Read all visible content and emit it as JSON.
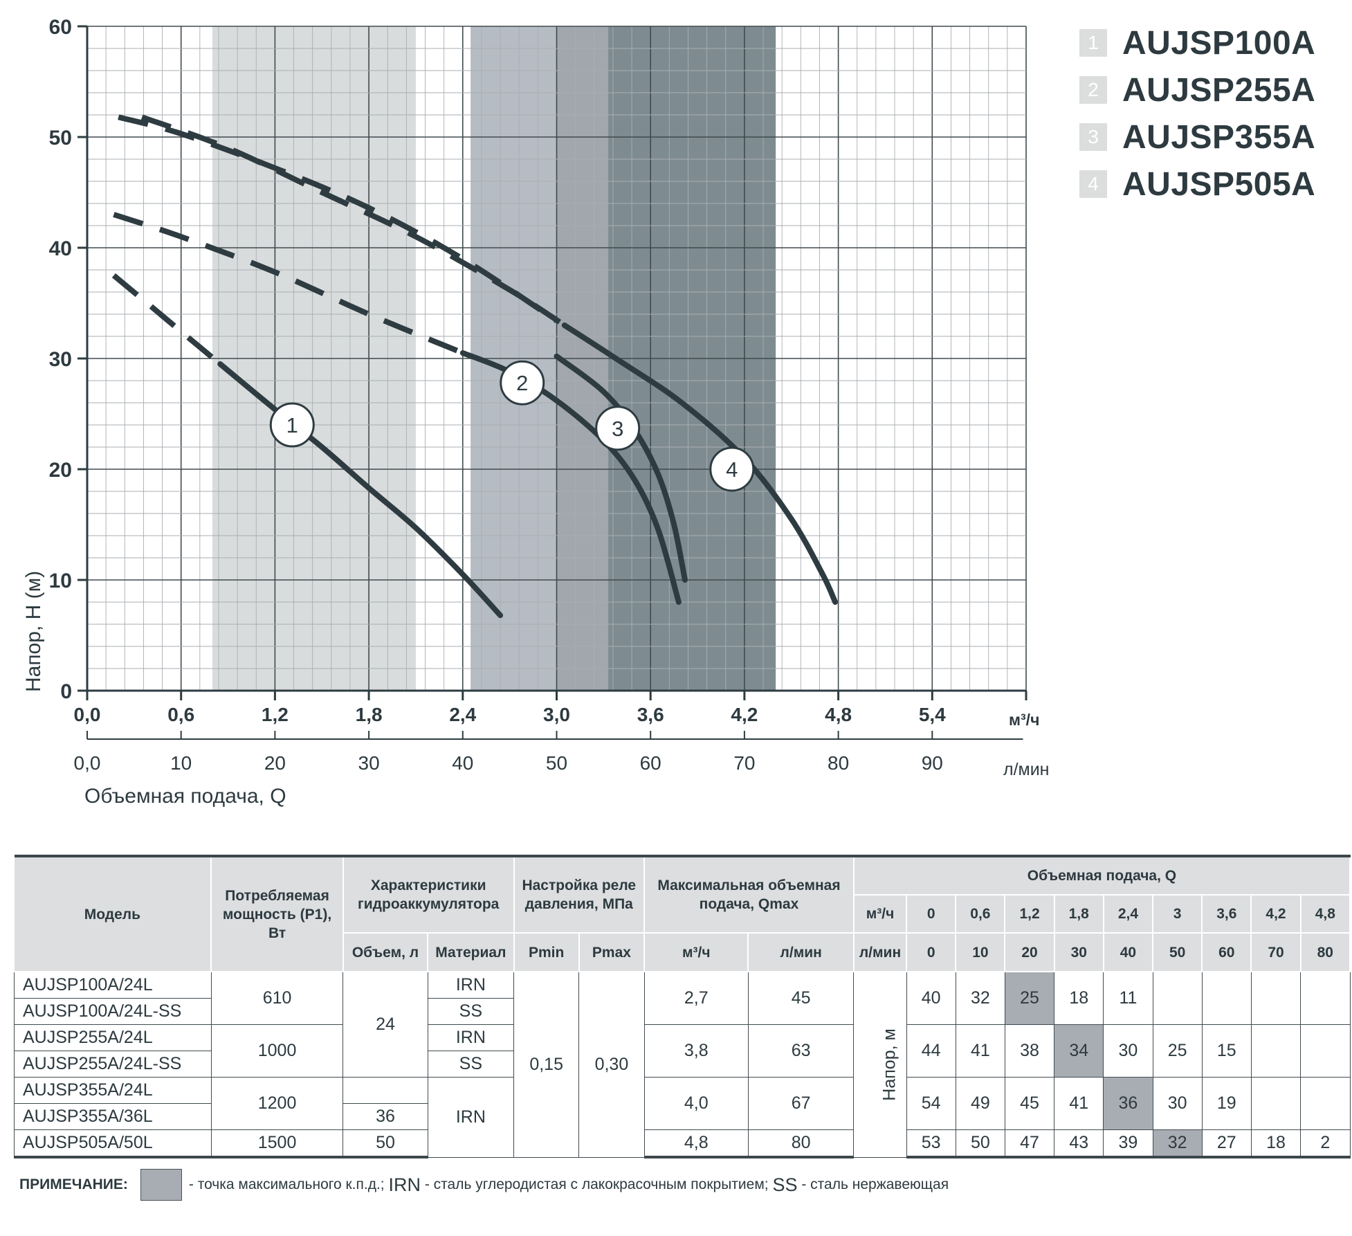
{
  "chart_data": {
    "type": "line",
    "ylabel": "Напор, Н (м)",
    "xlabel": "Объемная подача, Q",
    "x_unit": "м³/ч",
    "x2_unit": "л/мин",
    "ylim": [
      0,
      60
    ],
    "xlim": [
      0,
      6
    ],
    "y_ticks": [
      "0",
      "10",
      "20",
      "30",
      "40",
      "50",
      "60"
    ],
    "x_ticks": [
      {
        "v": 0,
        "label": "0,0"
      },
      {
        "v": 0.6,
        "label": "0,6"
      },
      {
        "v": 1.2,
        "label": "1,2"
      },
      {
        "v": 1.8,
        "label": "1,8"
      },
      {
        "v": 2.4,
        "label": "2,4"
      },
      {
        "v": 3.0,
        "label": "3,0"
      },
      {
        "v": 3.6,
        "label": "3,6"
      },
      {
        "v": 4.2,
        "label": "4,2"
      },
      {
        "v": 4.8,
        "label": "4,8"
      },
      {
        "v": 5.4,
        "label": "5,4"
      }
    ],
    "x2_ticks": [
      {
        "v": 0,
        "label": "0,0"
      },
      {
        "v": 10,
        "label": "10"
      },
      {
        "v": 20,
        "label": "20"
      },
      {
        "v": 30,
        "label": "30"
      },
      {
        "v": 40,
        "label": "40"
      },
      {
        "v": 50,
        "label": "50"
      },
      {
        "v": 60,
        "label": "60"
      },
      {
        "v": 70,
        "label": "70"
      },
      {
        "v": 80,
        "label": "80"
      },
      {
        "v": 90,
        "label": "90"
      }
    ],
    "grid": true,
    "series": [
      {
        "name": "1",
        "color": "#2e3c42",
        "dashed": [
          [
            0.17,
            37.5
          ],
          [
            0.4,
            34.8
          ],
          [
            0.62,
            32.2
          ],
          [
            0.85,
            29.5
          ]
        ],
        "solid": [
          [
            0.85,
            29.5
          ],
          [
            1.2,
            25.4
          ],
          [
            1.5,
            22.0
          ],
          [
            1.8,
            18.3
          ],
          [
            2.1,
            14.7
          ],
          [
            2.4,
            10.5
          ],
          [
            2.64,
            6.8
          ]
        ],
        "marker": [
          1.31,
          24.0
        ],
        "band": {
          "x0": 0.8,
          "x1": 2.1,
          "color": "#d9dcdc"
        }
      },
      {
        "name": "2",
        "color": "#2e3c42",
        "dashed": [
          [
            0.17,
            43.0
          ],
          [
            0.6,
            41.0
          ],
          [
            1.2,
            37.8
          ],
          [
            1.8,
            34.0
          ],
          [
            2.4,
            30.5
          ]
        ],
        "solid": [
          [
            2.4,
            30.5
          ],
          [
            2.7,
            28.8
          ],
          [
            3.0,
            26.2
          ],
          [
            3.3,
            22.6
          ],
          [
            3.5,
            19.0
          ],
          [
            3.65,
            14.5
          ],
          [
            3.78,
            8.0
          ]
        ],
        "marker": [
          2.78,
          27.8
        ],
        "band": {
          "x0": 2.45,
          "x1": 3.75,
          "color": "#b6bcc4"
        }
      },
      {
        "name": "3",
        "color": "#2e3c42",
        "dashed": [
          [
            0.2,
            51.8
          ],
          [
            0.6,
            50.3
          ],
          [
            1.2,
            47.2
          ],
          [
            1.8,
            43.6
          ],
          [
            2.4,
            39.0
          ],
          [
            3.0,
            33.4
          ]
        ],
        "solid": [
          [
            3.0,
            30.2
          ],
          [
            3.3,
            27.0
          ],
          [
            3.5,
            23.5
          ],
          [
            3.65,
            19.5
          ],
          [
            3.75,
            15.0
          ],
          [
            3.82,
            10.0
          ]
        ],
        "marker": [
          3.39,
          23.7
        ],
        "band": {
          "x0": 3.0,
          "x1": 3.75,
          "color": "#a1a7ad"
        }
      },
      {
        "name": "4",
        "color": "#2e3c42",
        "dashed": [
          [
            0.35,
            51.8
          ],
          [
            0.9,
            49.0
          ],
          [
            1.5,
            45.0
          ],
          [
            2.1,
            41.0
          ],
          [
            2.7,
            36.2
          ],
          [
            3.05,
            33.0
          ]
        ],
        "solid": [
          [
            3.05,
            33.0
          ],
          [
            3.4,
            29.8
          ],
          [
            3.8,
            26.0
          ],
          [
            4.2,
            21.0
          ],
          [
            4.5,
            15.5
          ],
          [
            4.7,
            10.5
          ],
          [
            4.78,
            8.0
          ]
        ],
        "marker": [
          4.12,
          20.0
        ],
        "band": {
          "x0": 3.33,
          "x1": 4.4,
          "color": "#7e8c92"
        }
      }
    ]
  },
  "legend": [
    {
      "num": "1",
      "name": "AUJSP100A"
    },
    {
      "num": "2",
      "name": "AUJSP255A"
    },
    {
      "num": "3",
      "name": "AUJSP355A"
    },
    {
      "num": "4",
      "name": "AUJSP505A"
    }
  ],
  "table": {
    "headers": {
      "model": "Модель",
      "power": "Потребляемая мощность (Р1), Вт",
      "tank": "Характеристики гидроаккумулятора",
      "tank_volume": "Объем, л",
      "tank_material": "Материал",
      "relay": "Настройка реле давления, МПа",
      "pmin": "Pmin",
      "pmax": "Pmax",
      "qmax": "Максимальная объемная подача, Qmax",
      "qmax_m3": "м³/ч",
      "qmax_lmin": "л/мин",
      "flow": "Объемная подача, Q",
      "flow_m3_label": "м³/ч",
      "flow_lmin_label": "л/мин",
      "flow_m3": [
        "0",
        "0,6",
        "1,2",
        "1,8",
        "2,4",
        "3",
        "3,6",
        "4,2",
        "4,8"
      ],
      "flow_lmin": [
        "0",
        "10",
        "20",
        "30",
        "40",
        "50",
        "60",
        "70",
        "80"
      ]
    },
    "head_label": "Напор, м",
    "models": [
      "AUJSP100A/24L",
      "AUJSP100A/24L-SS",
      "AUJSP255A/24L",
      "AUJSP255A/24L-SS",
      "AUJSP355A/24L",
      "AUJSP355A/36L",
      "AUJSP505A/50L"
    ],
    "groups": [
      {
        "power": "610",
        "qm3": "2,7",
        "ql": "45",
        "heads": [
          "40",
          "32",
          "25",
          "18",
          "11",
          "",
          "",
          "",
          ""
        ],
        "hl": 2
      },
      {
        "power": "1000",
        "qm3": "3,8",
        "ql": "63",
        "heads": [
          "44",
          "41",
          "38",
          "34",
          "30",
          "25",
          "15",
          "",
          ""
        ],
        "hl": 3
      },
      {
        "power": "1200",
        "qm3": "4,0",
        "ql": "67",
        "heads": [
          "54",
          "49",
          "45",
          "41",
          "36",
          "30",
          "19",
          "",
          ""
        ],
        "hl": 4
      },
      {
        "power": "1500",
        "qm3": "4,8",
        "ql": "80",
        "heads": [
          "53",
          "50",
          "47",
          "43",
          "39",
          "32",
          "27",
          "18",
          "2"
        ],
        "hl": 5
      }
    ],
    "volumes": [
      "24",
      "36",
      "50"
    ],
    "materials": [
      "IRN",
      "SS",
      "IRN",
      "SS",
      "IRN"
    ],
    "pmin": "0,15",
    "pmax": "0,30"
  },
  "note": {
    "label": "ПРИМЕЧАНИЕ:",
    "text1": "- точка максимального к.п.д.;",
    "irn": "IRN",
    "text2": "- сталь углеродистая с лакокрасочным покрытием;",
    "ss": "SS",
    "text3": "- сталь нержавеющая"
  }
}
